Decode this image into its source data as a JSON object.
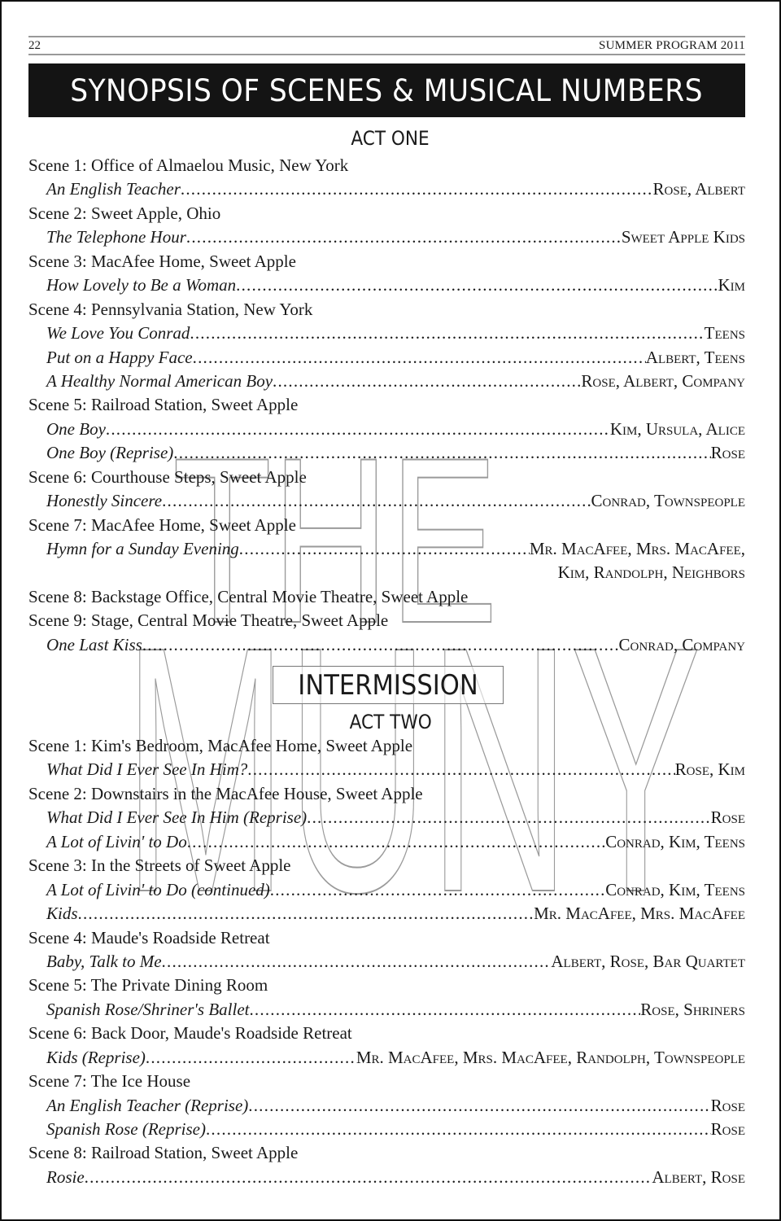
{
  "header": {
    "page_number": "22",
    "running_head": "SUMMER PROGRAM 2011"
  },
  "title": "SYNOPSIS OF SCENES & MUSICAL NUMBERS",
  "watermark": {
    "logo_text_top": "THE",
    "logo_text_bottom": "MUNY"
  },
  "intermission": "INTERMISSION",
  "acts": [
    {
      "heading": "ACT ONE",
      "rows": [
        {
          "type": "scene",
          "text": "Scene 1: Office of Almaelou Music, New York"
        },
        {
          "type": "song",
          "title": "An English Teacher",
          "cast": "Rose, Albert"
        },
        {
          "type": "scene",
          "text": "Scene 2: Sweet Apple, Ohio"
        },
        {
          "type": "song",
          "title": "The Telephone Hour",
          "cast": "Sweet Apple Kids"
        },
        {
          "type": "scene",
          "text": "Scene 3: MacAfee Home, Sweet Apple"
        },
        {
          "type": "song",
          "title": "How Lovely to Be a Woman",
          "cast": "Kim"
        },
        {
          "type": "scene",
          "text": "Scene 4: Pennsylvania Station, New York"
        },
        {
          "type": "song",
          "title": "We Love You Conrad",
          "cast": "Teens"
        },
        {
          "type": "song",
          "title": "Put on a Happy Face",
          "cast": "Albert, Teens"
        },
        {
          "type": "song",
          "title": "A Healthy Normal American Boy",
          "cast": "Rose, Albert, Company"
        },
        {
          "type": "scene",
          "text": "Scene 5: Railroad Station, Sweet Apple"
        },
        {
          "type": "song",
          "title": "One Boy",
          "cast": "Kim, Ursula, Alice"
        },
        {
          "type": "song",
          "title": "One Boy (Reprise)",
          "cast": "Rose"
        },
        {
          "type": "scene",
          "text": "Scene 6: Courthouse Steps, Sweet Apple"
        },
        {
          "type": "song",
          "title": "Honestly Sincere",
          "cast": "Conrad, Townspeople"
        },
        {
          "type": "scene",
          "text": "Scene 7: MacAfee Home, Sweet Apple"
        },
        {
          "type": "song",
          "title": "Hymn for a Sunday Evening",
          "cast": "Mr. MacAfee, Mrs. MacAfee,"
        },
        {
          "type": "cont",
          "cast": "Kim, Randolph, Neighbors"
        },
        {
          "type": "scene",
          "text": "Scene 8: Backstage Office, Central Movie Theatre, Sweet Apple"
        },
        {
          "type": "scene",
          "text": "Scene 9: Stage, Central Movie Theatre, Sweet Apple"
        },
        {
          "type": "song",
          "title": "One Last Kiss",
          "cast": "Conrad, Company"
        }
      ]
    },
    {
      "heading": "ACT TWO",
      "rows": [
        {
          "type": "scene",
          "text": "Scene 1: Kim's Bedroom, MacAfee Home, Sweet Apple"
        },
        {
          "type": "song",
          "title": "What Did I Ever See In Him?",
          "cast": "Rose, Kim"
        },
        {
          "type": "scene",
          "text": "Scene 2: Downstairs in the MacAfee House, Sweet Apple"
        },
        {
          "type": "song",
          "title": "What Did I Ever See In Him (Reprise)",
          "cast": "Rose"
        },
        {
          "type": "song",
          "title": "A Lot of Livin' to Do",
          "cast": "Conrad, Kim, Teens"
        },
        {
          "type": "scene",
          "text": "Scene 3: In the Streets of Sweet Apple"
        },
        {
          "type": "song",
          "title": "A Lot of Livin' to Do (continued)",
          "cast": "Conrad, Kim, Teens"
        },
        {
          "type": "song",
          "title": "Kids",
          "cast": "Mr. MacAfee, Mrs. MacAfee"
        },
        {
          "type": "scene",
          "text": "Scene 4: Maude's Roadside Retreat"
        },
        {
          "type": "song",
          "title": "Baby, Talk to Me",
          "cast": "Albert, Rose, Bar Quartet"
        },
        {
          "type": "scene",
          "text": "Scene 5: The Private Dining Room"
        },
        {
          "type": "song",
          "title": "Spanish Rose/Shriner's Ballet",
          "cast": "Rose, Shriners"
        },
        {
          "type": "scene",
          "text": "Scene 6: Back Door, Maude's Roadside Retreat"
        },
        {
          "type": "song",
          "title": "Kids (Reprise)",
          "cast": "Mr. MacAfee, Mrs. MacAfee, Randolph, Townspeople"
        },
        {
          "type": "scene",
          "text": "Scene 7: The Ice House"
        },
        {
          "type": "song",
          "title": "An English Teacher (Reprise)",
          "cast": "Rose"
        },
        {
          "type": "song",
          "title": "Spanish Rose (Reprise)",
          "cast": "Rose"
        },
        {
          "type": "scene",
          "text": "Scene 8: Railroad Station, Sweet Apple"
        },
        {
          "type": "song",
          "title": "Rosie",
          "cast": "Albert, Rose"
        }
      ]
    }
  ]
}
